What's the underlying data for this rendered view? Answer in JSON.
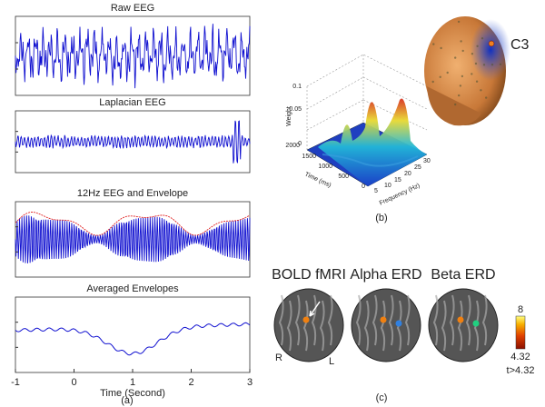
{
  "panel_a": {
    "plots": [
      {
        "title": "Raw EEG"
      },
      {
        "title": "Laplacian EEG"
      },
      {
        "title": "12Hz EEG and Envelope"
      },
      {
        "title": "Averaged Envelopes"
      }
    ],
    "xtick_labels": [
      "-1",
      "0",
      "1",
      "2",
      "3"
    ],
    "xlabel": "Time (Second)",
    "caption": "(a)"
  },
  "panel_b": {
    "electrode": "C3",
    "zlabel": "Weight",
    "ztick_labels": [
      "0.1",
      "0.05",
      "0"
    ],
    "ylabel": "Time (ms)",
    "ytick_labels": [
      "2000",
      "1500",
      "1000",
      "500",
      "0"
    ],
    "xlabel": "Frequency (Hz)",
    "xtick_labels": [
      "5",
      "10",
      "15",
      "20",
      "25",
      "30"
    ],
    "caption": "(b)"
  },
  "panel_c": {
    "titles": [
      "BOLD fMRI",
      "Alpha ERD",
      "Beta ERD"
    ],
    "left_label": "R",
    "right_label": "L",
    "colorbar_max": "8",
    "colorbar_min": "4.32",
    "threshold": "t>4.32",
    "caption": "(c)"
  }
}
